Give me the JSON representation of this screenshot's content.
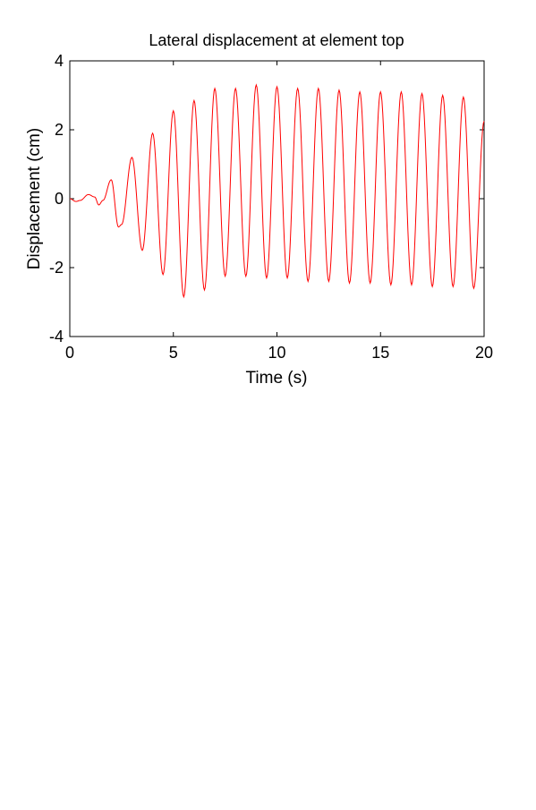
{
  "chart_data": {
    "type": "line",
    "title": "Lateral displacement at element top",
    "xlabel": "Time (s)",
    "ylabel": "Displacement (cm)",
    "xlim": [
      0,
      20
    ],
    "ylim": [
      -4,
      4
    ],
    "xticks": [
      0,
      5,
      10,
      15,
      20
    ],
    "xtick_labels": [
      "0",
      "5",
      "10",
      "15",
      "20"
    ],
    "yticks": [
      -4,
      -2,
      0,
      2,
      4
    ],
    "ytick_labels": [
      "-4",
      "-2",
      "0",
      "2",
      "4"
    ],
    "grid": false,
    "series": [
      {
        "color": "#ff0000",
        "x": [
          0,
          0.3,
          0.5,
          0.9,
          1.2,
          1.4,
          1.6,
          2.0,
          2.35,
          2.5,
          3.0,
          3.5,
          4.0,
          4.5,
          5.0,
          5.5,
          6.0,
          6.5,
          7.0,
          7.5,
          8.0,
          8.5,
          9.0,
          9.5,
          10.0,
          10.5,
          11.0,
          11.5,
          12.0,
          12.5,
          13.0,
          13.5,
          14.0,
          14.5,
          15.0,
          15.5,
          16.0,
          16.5,
          17.0,
          17.5,
          18.0,
          18.5,
          19.0,
          19.5,
          20.0
        ],
        "y": [
          0,
          -0.08,
          -0.05,
          0.12,
          0.05,
          -0.18,
          -0.05,
          0.55,
          -0.82,
          -0.75,
          1.2,
          -1.5,
          1.9,
          -2.2,
          2.55,
          -2.85,
          2.85,
          -2.65,
          3.2,
          -2.25,
          3.2,
          -2.25,
          3.3,
          -2.3,
          3.25,
          -2.3,
          3.2,
          -2.4,
          3.2,
          -2.4,
          3.15,
          -2.45,
          3.1,
          -2.45,
          3.1,
          -2.5,
          3.1,
          -2.5,
          3.05,
          -2.55,
          3.0,
          -2.55,
          2.95,
          -2.6,
          2.25
        ]
      }
    ]
  }
}
